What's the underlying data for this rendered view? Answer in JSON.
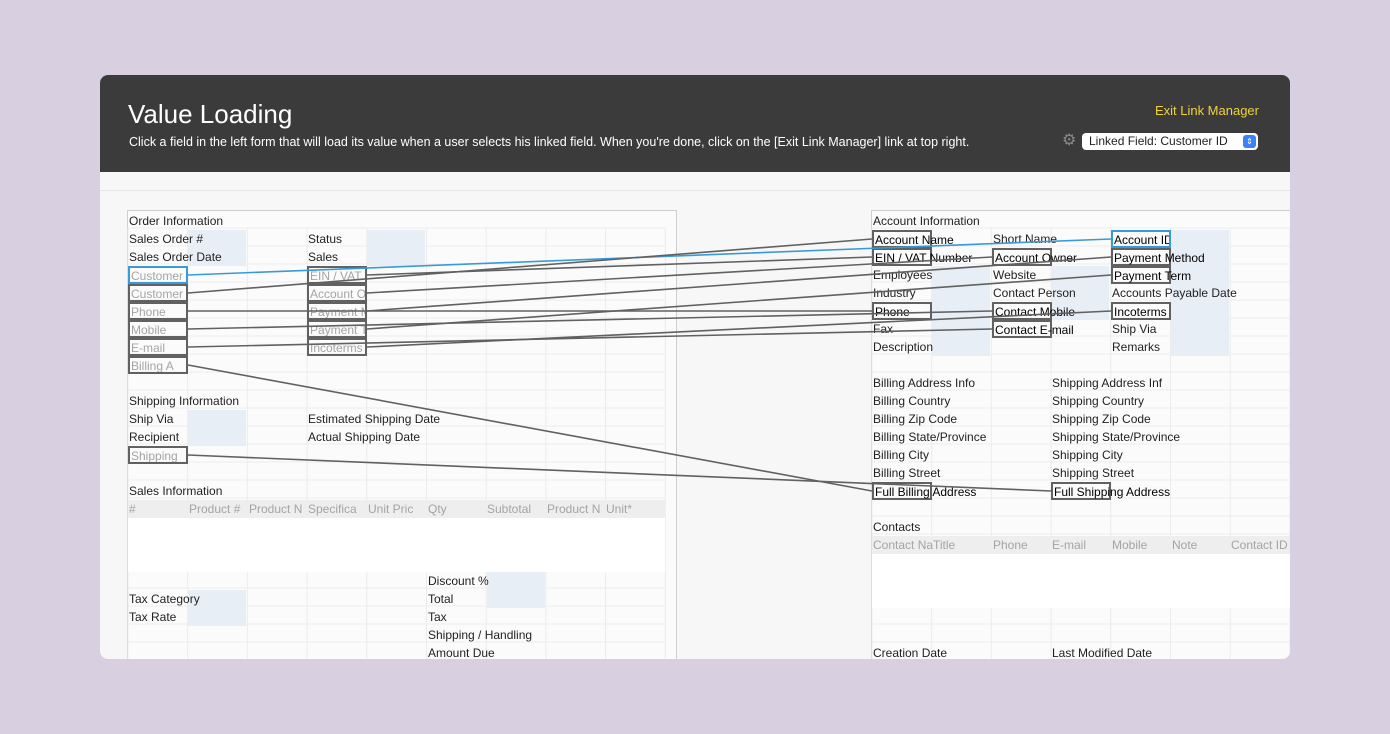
{
  "header": {
    "title": "Value Loading",
    "subtitle": "Click a field in the left form that will load its value when a user selects his linked field. When you're done, click on the [Exit Link Manager] link at top right.",
    "exit_label": "Exit Link Manager",
    "linked_field_label": "Linked Field: Customer ID",
    "gear_icon": "gear-icon"
  },
  "left_form": {
    "order_information": "Order Information",
    "sales_order_no": "Sales Order #",
    "sales_order_date": "Sales Order Date",
    "status": "Status",
    "sales": "Sales",
    "customer_id": "Customer",
    "customer_name": "Customer",
    "phone": "Phone",
    "mobile": "Mobile",
    "email": "E-mail",
    "billing_address": "Billing A",
    "ein_vat": "EIN / VAT",
    "account_owner": "Account O",
    "payment_method": "Payment M",
    "payment_term": "Payment T",
    "incoterms": "Incoterms",
    "shipping_information": "Shipping Information",
    "ship_via": "Ship Via",
    "recipient": "Recipient",
    "shipping_address": "Shipping",
    "estimated_shipping_date": "Estimated Shipping Date",
    "actual_shipping_date": "Actual Shipping Date",
    "sales_information": "Sales Information",
    "sales_columns": [
      "#",
      "Product #",
      "Product N",
      "Specifica",
      "Unit Pric",
      "Qty",
      "Subtotal",
      "Product N",
      "Unit*"
    ],
    "discount": "Discount %",
    "total": "Total",
    "tax": "Tax",
    "shipping_handling": "Shipping / Handling",
    "amount_due": "Amount Due",
    "tax_category": "Tax Category",
    "tax_rate": "Tax Rate"
  },
  "right_form": {
    "account_information": "Account Information",
    "account_name": "Account Name",
    "ein_vat_number": "EIN / VAT Number",
    "employees": "Employees",
    "industry": "Industry",
    "phone": "Phone",
    "fax": "Fax",
    "description": "Description",
    "short_name": "Short Name",
    "account_owner": "Account Owner",
    "website": "Website",
    "contact_person": "Contact Person",
    "contact_mobile": "Contact Mobile",
    "contact_email": "Contact E-mail",
    "account_id": "Account ID",
    "payment_method": "Payment Method",
    "payment_term": "Payment Term",
    "accounts_payable_date": "Accounts Payable Date",
    "incoterms": "Incoterms",
    "ship_via": "Ship Via",
    "remarks": "Remarks",
    "billing_address_info": "Billing Address Info",
    "billing_country": "Billing Country",
    "billing_zip": "Billing Zip Code",
    "billing_state": "Billing State/Province",
    "billing_city": "Billing City",
    "billing_street": "Billing Street",
    "full_billing_address": "Full Billing Address",
    "shipping_address_info": "Shipping Address Inf",
    "shipping_country": "Shipping Country",
    "shipping_zip": "Shipping Zip Code",
    "shipping_state": "Shipping State/Province",
    "shipping_city": "Shipping City",
    "shipping_street": "Shipping Street",
    "full_shipping_address": "Full Shipping Address",
    "contacts": "Contacts",
    "contact_columns": [
      "Contact Na",
      "Title",
      "Phone",
      "E-mail",
      "Mobile",
      "Note",
      "Contact ID"
    ],
    "creation_date": "Creation Date",
    "last_modified_date": "Last Modified Date"
  },
  "colors": {
    "header_bg": "#3b3b3b",
    "exit_link": "#f1d23a",
    "link_blue": "#3a9ad9",
    "link_gray": "#616161",
    "page_bg": "#d8d0e1"
  }
}
